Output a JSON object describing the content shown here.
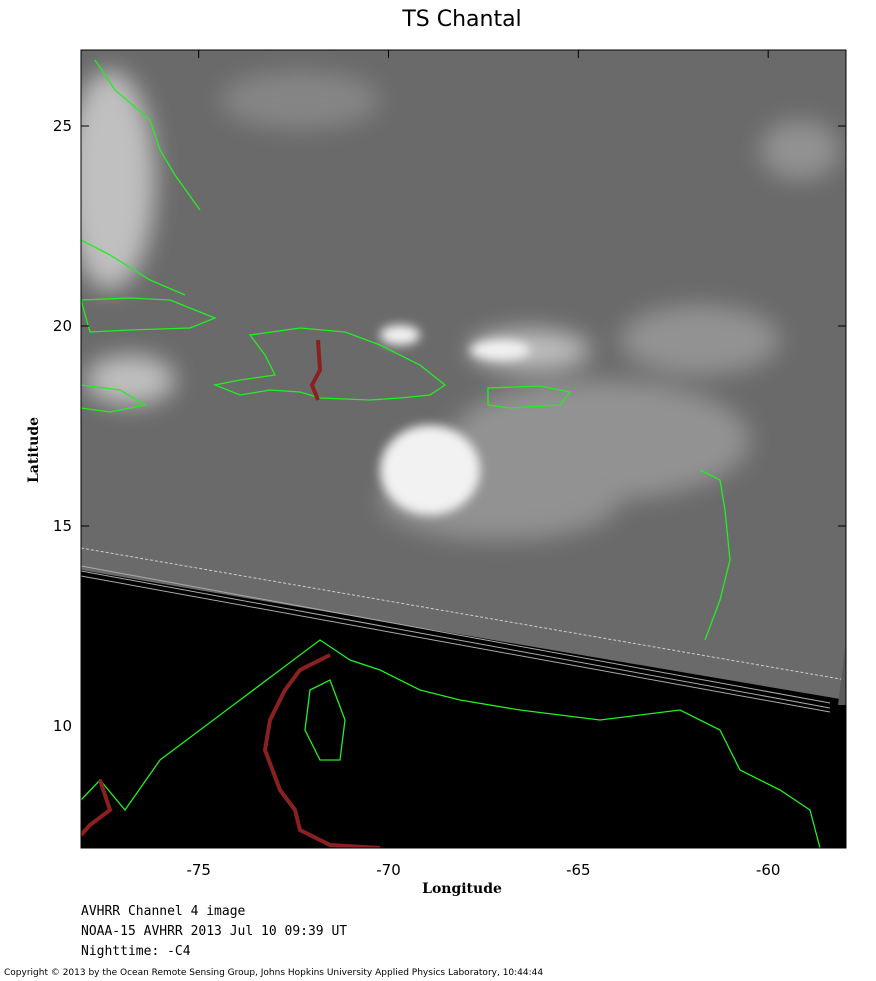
{
  "title": "TS Chantal",
  "x_axis": {
    "label": "Longitude",
    "lim": [
      -78.1,
      -57.95
    ],
    "ticks": [
      -75,
      -70,
      -65,
      -60
    ]
  },
  "y_axis": {
    "label": "Latitude",
    "lim": [
      6.95,
      26.9
    ],
    "ticks": [
      10,
      15,
      20,
      25
    ]
  },
  "captions": [
    "AVHRR Channel 4 image",
    "NOAA-15 AVHRR 2013 Jul 10 09:39 UT",
    "Nighttime: -C4"
  ],
  "copyright": "Copyright © 2013 by the Ocean Remote Sensing Group, Johns Hopkins University Applied Physics Laboratory, 10:44:44"
}
